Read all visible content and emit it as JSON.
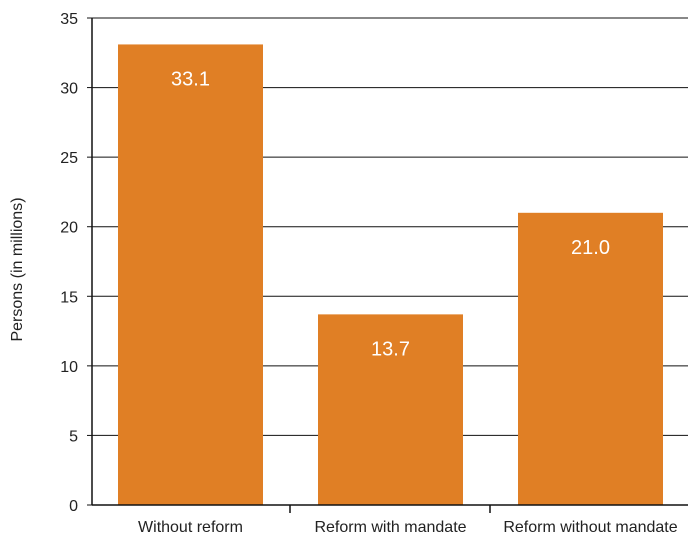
{
  "chart_data": {
    "type": "bar",
    "title": "",
    "xlabel": "",
    "ylabel": "Persons (in millions)",
    "ylim": [
      0,
      35
    ],
    "yticks": [
      0,
      5,
      10,
      15,
      20,
      25,
      30,
      35
    ],
    "grid": true,
    "legend": "none",
    "categories": [
      "Without reform",
      "Reform with mandate",
      "Reform without mandate"
    ],
    "values": [
      33.1,
      13.7,
      21.0
    ],
    "data_labels": [
      "33.1",
      "13.7",
      "21.0"
    ],
    "colors": {
      "bar": "#E07F25",
      "grid": "#111111",
      "axis": "#111111",
      "data_label": "#ffffff"
    }
  }
}
